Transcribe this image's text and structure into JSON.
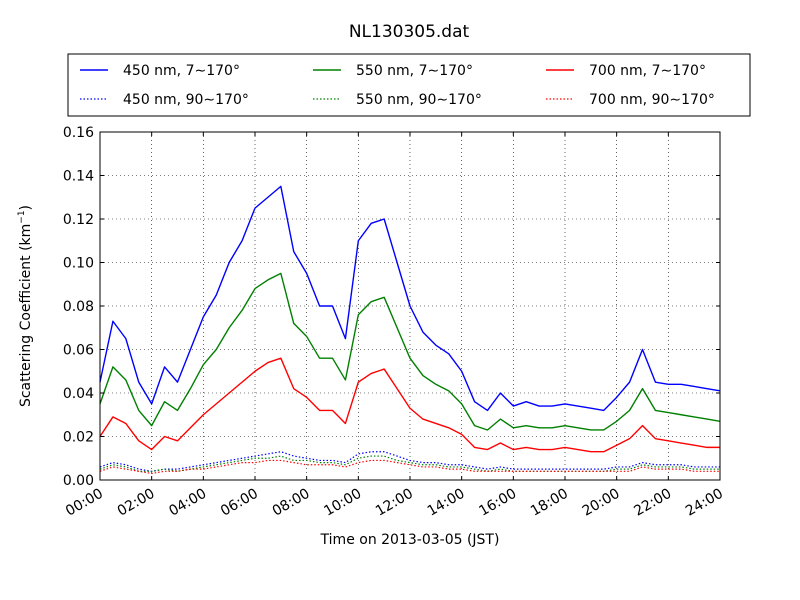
{
  "chart_data": {
    "type": "line",
    "title": "NL130305.dat",
    "xlabel": "Time on 2013-03-05 (JST)",
    "ylabel": "Scattering Coefficient (km",
    "ylabel_unit_sup": "−1",
    "ylabel_close": ")",
    "xlim": [
      0,
      24
    ],
    "ylim": [
      0,
      0.16
    ],
    "x_unit": "hours",
    "xticks": [
      0,
      2,
      4,
      6,
      8,
      10,
      12,
      14,
      16,
      18,
      20,
      22,
      24
    ],
    "xtick_labels": [
      "00:00",
      "02:00",
      "04:00",
      "06:00",
      "08:00",
      "10:00",
      "12:00",
      "14:00",
      "16:00",
      "18:00",
      "20:00",
      "22:00",
      "24:00"
    ],
    "yticks": [
      0.0,
      0.02,
      0.04,
      0.06,
      0.08,
      0.1,
      0.12,
      0.14,
      0.16
    ],
    "ytick_labels": [
      "0.00",
      "0.02",
      "0.04",
      "0.06",
      "0.08",
      "0.10",
      "0.12",
      "0.14",
      "0.16"
    ],
    "grid": true,
    "grid_style": "dotted",
    "legend_placement": "top",
    "x": [
      0,
      0.5,
      1,
      1.5,
      2,
      2.5,
      3,
      3.5,
      4,
      4.5,
      5,
      5.5,
      6,
      6.5,
      7,
      7.5,
      8,
      8.5,
      9,
      9.5,
      10,
      10.5,
      11,
      11.5,
      12,
      12.5,
      13,
      13.5,
      14,
      14.5,
      15,
      15.5,
      16,
      16.5,
      17,
      17.5,
      18,
      18.5,
      19,
      19.5,
      20,
      20.5,
      21,
      21.5,
      22,
      22.5,
      23,
      23.5,
      24
    ],
    "series": [
      {
        "name": "450 nm, 7∼170°",
        "color": "#0000ff",
        "style": "solid",
        "values": [
          0.045,
          0.073,
          0.065,
          0.045,
          0.035,
          0.052,
          0.045,
          0.06,
          0.075,
          0.085,
          0.1,
          0.11,
          0.125,
          0.13,
          0.135,
          0.105,
          0.095,
          0.08,
          0.08,
          0.065,
          0.11,
          0.118,
          0.12,
          0.1,
          0.08,
          0.068,
          0.062,
          0.058,
          0.05,
          0.036,
          0.032,
          0.04,
          0.034,
          0.036,
          0.034,
          0.034,
          0.035,
          0.034,
          0.033,
          0.032,
          0.038,
          0.045,
          0.06,
          0.045,
          0.044,
          0.044,
          0.043,
          0.042,
          0.041
        ]
      },
      {
        "name": "550 nm, 7∼170°",
        "color": "#008000",
        "style": "solid",
        "values": [
          0.035,
          0.052,
          0.046,
          0.032,
          0.025,
          0.036,
          0.032,
          0.042,
          0.053,
          0.06,
          0.07,
          0.078,
          0.088,
          0.092,
          0.095,
          0.072,
          0.066,
          0.056,
          0.056,
          0.046,
          0.076,
          0.082,
          0.084,
          0.07,
          0.056,
          0.048,
          0.044,
          0.041,
          0.035,
          0.025,
          0.023,
          0.028,
          0.024,
          0.025,
          0.024,
          0.024,
          0.025,
          0.024,
          0.023,
          0.023,
          0.027,
          0.032,
          0.042,
          0.032,
          0.031,
          0.03,
          0.029,
          0.028,
          0.027
        ]
      },
      {
        "name": "700 nm, 7∼170°",
        "color": "#ff0000",
        "style": "solid",
        "values": [
          0.02,
          0.029,
          0.026,
          0.018,
          0.014,
          0.02,
          0.018,
          0.024,
          0.03,
          0.035,
          0.04,
          0.045,
          0.05,
          0.054,
          0.056,
          0.042,
          0.038,
          0.032,
          0.032,
          0.026,
          0.045,
          0.049,
          0.051,
          0.042,
          0.033,
          0.028,
          0.026,
          0.024,
          0.021,
          0.015,
          0.014,
          0.017,
          0.014,
          0.015,
          0.014,
          0.014,
          0.015,
          0.014,
          0.013,
          0.013,
          0.016,
          0.019,
          0.025,
          0.019,
          0.018,
          0.017,
          0.016,
          0.015,
          0.015
        ]
      },
      {
        "name": "450 nm, 90∼170°",
        "color": "#0000ff",
        "style": "dotted",
        "values": [
          0.006,
          0.008,
          0.007,
          0.005,
          0.004,
          0.005,
          0.005,
          0.006,
          0.007,
          0.008,
          0.009,
          0.01,
          0.011,
          0.012,
          0.013,
          0.011,
          0.01,
          0.009,
          0.009,
          0.008,
          0.012,
          0.013,
          0.013,
          0.011,
          0.009,
          0.008,
          0.008,
          0.007,
          0.007,
          0.006,
          0.005,
          0.006,
          0.005,
          0.005,
          0.005,
          0.005,
          0.005,
          0.005,
          0.005,
          0.005,
          0.006,
          0.006,
          0.008,
          0.007,
          0.007,
          0.007,
          0.006,
          0.006,
          0.006
        ]
      },
      {
        "name": "550 nm, 90∼170°",
        "color": "#008000",
        "style": "dotted",
        "values": [
          0.005,
          0.007,
          0.006,
          0.004,
          0.004,
          0.005,
          0.004,
          0.005,
          0.006,
          0.007,
          0.008,
          0.009,
          0.01,
          0.01,
          0.011,
          0.009,
          0.009,
          0.008,
          0.008,
          0.007,
          0.01,
          0.011,
          0.011,
          0.009,
          0.008,
          0.007,
          0.007,
          0.006,
          0.006,
          0.005,
          0.004,
          0.005,
          0.004,
          0.004,
          0.004,
          0.004,
          0.004,
          0.004,
          0.004,
          0.004,
          0.005,
          0.005,
          0.007,
          0.006,
          0.006,
          0.006,
          0.005,
          0.005,
          0.005
        ]
      },
      {
        "name": "700 nm, 90∼170°",
        "color": "#ff0000",
        "style": "dotted",
        "values": [
          0.004,
          0.006,
          0.005,
          0.004,
          0.003,
          0.004,
          0.004,
          0.005,
          0.005,
          0.006,
          0.007,
          0.008,
          0.008,
          0.009,
          0.009,
          0.008,
          0.007,
          0.007,
          0.007,
          0.006,
          0.008,
          0.009,
          0.009,
          0.008,
          0.007,
          0.006,
          0.006,
          0.005,
          0.005,
          0.004,
          0.004,
          0.004,
          0.004,
          0.004,
          0.004,
          0.004,
          0.004,
          0.004,
          0.004,
          0.004,
          0.004,
          0.004,
          0.006,
          0.005,
          0.005,
          0.005,
          0.004,
          0.004,
          0.004
        ]
      }
    ],
    "legend_order": [
      0,
      1,
      2,
      3,
      4,
      5
    ]
  }
}
